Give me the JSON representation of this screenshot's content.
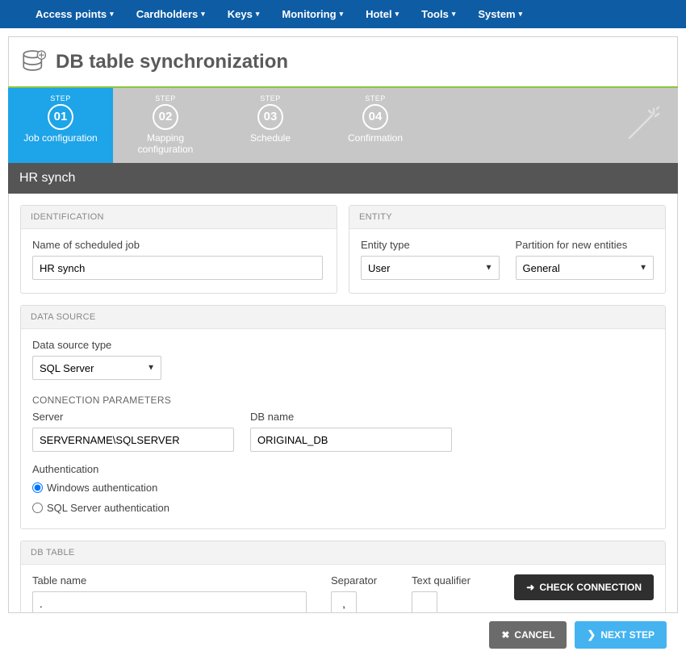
{
  "nav": {
    "items": [
      "Access points",
      "Cardholders",
      "Keys",
      "Monitoring",
      "Hotel",
      "Tools",
      "System"
    ]
  },
  "page": {
    "title": "DB table synchronization",
    "subtitle": "HR synch"
  },
  "wizard": {
    "step_label": "STEP",
    "steps": [
      {
        "num": "01",
        "title": "Job configuration",
        "active": true
      },
      {
        "num": "02",
        "title": "Mapping configuration",
        "active": false
      },
      {
        "num": "03",
        "title": "Schedule",
        "active": false
      },
      {
        "num": "04",
        "title": "Confirmation",
        "active": false
      }
    ]
  },
  "identification": {
    "header": "IDENTIFICATION",
    "name_label": "Name of scheduled job",
    "name_value": "HR synch"
  },
  "entity": {
    "header": "ENTITY",
    "type_label": "Entity type",
    "type_value": "User",
    "partition_label": "Partition for new entities",
    "partition_value": "General"
  },
  "datasource": {
    "header": "DATA SOURCE",
    "type_label": "Data source type",
    "type_value": "SQL Server",
    "conn_header": "CONNECTION PARAMETERS",
    "server_label": "Server",
    "server_value": "SERVERNAME\\SQLSERVER",
    "dbname_label": "DB name",
    "dbname_value": "ORIGINAL_DB",
    "auth_label": "Authentication",
    "auth_windows": "Windows authentication",
    "auth_sql": "SQL Server authentication"
  },
  "dbtable": {
    "header": "DB TABLE",
    "tablename_label": "Table name",
    "tablename_value": ".",
    "separator_label": "Separator",
    "separator_value": ",",
    "qualifier_label": "Text qualifier",
    "qualifier_value": "",
    "check_label": "CHECK CONNECTION"
  },
  "footer": {
    "cancel": "CANCEL",
    "next": "NEXT STEP"
  },
  "colors": {
    "nav_bg": "#0d5ca4",
    "step_active": "#1ea4e8",
    "step_inactive": "#c7c7c7",
    "accent_green": "#8cc63f",
    "subtitle_bg": "#555555",
    "btn_dark": "#2f2f2f",
    "btn_gray": "#6b6b6b",
    "btn_blue": "#44b3f0"
  }
}
